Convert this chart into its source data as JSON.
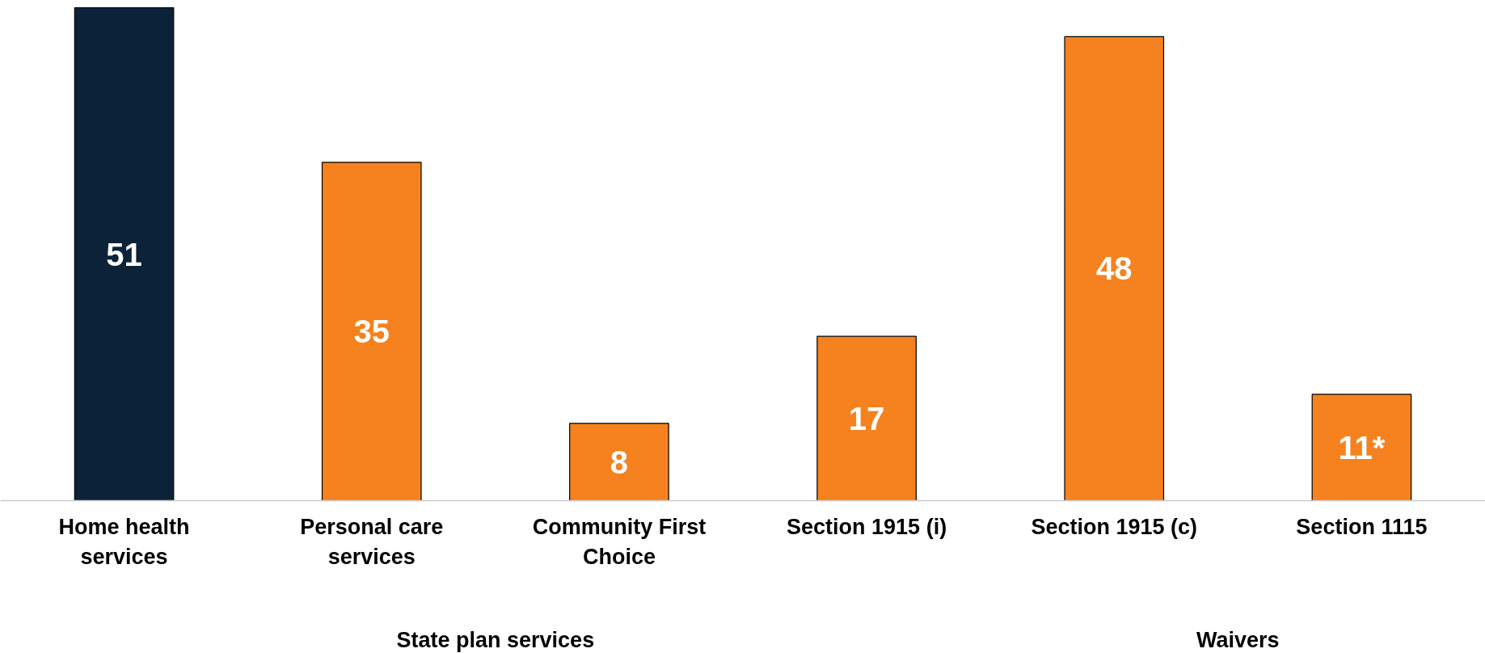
{
  "chart_data": {
    "type": "bar",
    "categories": [
      "Home health services",
      "Personal care services",
      "Community First Choice",
      "Section 1915 (i)",
      "Section 1915 (c)",
      "Section 1115"
    ],
    "values": [
      51,
      35,
      8,
      17,
      48,
      11
    ],
    "colors": [
      "#0b2239",
      "#f5821f",
      "#f5821f",
      "#f5821f",
      "#f5821f",
      "#f5821f"
    ],
    "value_labels": [
      "51",
      "35",
      "8",
      "17",
      "48",
      "11*"
    ],
    "annotations": [
      "State plan services",
      "Waivers"
    ],
    "grid": false
  }
}
